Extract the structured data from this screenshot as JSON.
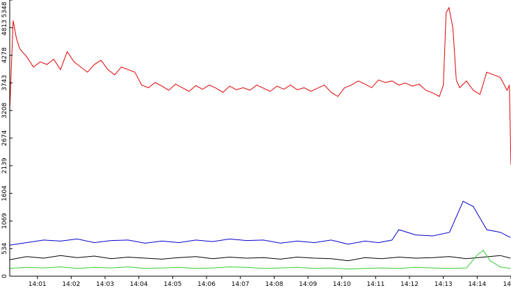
{
  "chart_data": {
    "type": "line",
    "title": "",
    "xlabel": "",
    "ylabel": "",
    "ylim": [
      0,
      5348
    ],
    "xlim": [
      "14:00:11",
      "14:15:00"
    ],
    "grid": false,
    "legend": "none",
    "y_ticks": [
      "0",
      "534",
      "1069",
      "1604",
      "2139",
      "2674",
      "3208",
      "3743",
      "4278",
      "4813",
      "5348"
    ],
    "x_ticks": [
      "14:01",
      "14:02",
      "14:03",
      "14:04",
      "14:05",
      "14:06",
      "14:07",
      "14:08",
      "14:09",
      "14:10",
      "14:11",
      "14:12",
      "14:13",
      "14:14",
      "14"
    ],
    "x_tick_times": [
      "14:01:00",
      "14:02:00",
      "14:03:00",
      "14:04:00",
      "14:05:00",
      "14:06:00",
      "14:07:00",
      "14:08:00",
      "14:09:00",
      "14:10:00",
      "14:11:00",
      "14:12:00",
      "14:13:00",
      "14:14:00",
      "14:15:00"
    ],
    "series": [
      {
        "color": "#e00000",
        "x": [
          "14:00:11",
          "14:00:17",
          "14:00:23",
          "14:00:29",
          "14:00:41",
          "14:00:53",
          "14:01:05",
          "14:01:17",
          "14:01:29",
          "14:01:41",
          "14:01:53",
          "14:02:05",
          "14:02:17",
          "14:02:29",
          "14:02:41",
          "14:02:53",
          "14:03:05",
          "14:03:17",
          "14:03:29",
          "14:03:41",
          "14:03:53",
          "14:04:05",
          "14:04:17",
          "14:04:29",
          "14:04:41",
          "14:04:53",
          "14:05:05",
          "14:05:17",
          "14:05:29",
          "14:05:41",
          "14:05:53",
          "14:06:05",
          "14:06:17",
          "14:06:29",
          "14:06:41",
          "14:06:53",
          "14:07:05",
          "14:07:17",
          "14:07:29",
          "14:07:41",
          "14:07:53",
          "14:08:05",
          "14:08:17",
          "14:08:29",
          "14:08:41",
          "14:08:53",
          "14:09:05",
          "14:09:17",
          "14:09:29",
          "14:09:41",
          "14:09:53",
          "14:10:05",
          "14:10:17",
          "14:10:29",
          "14:10:41",
          "14:10:53",
          "14:11:05",
          "14:11:17",
          "14:11:29",
          "14:11:41",
          "14:11:53",
          "14:12:05",
          "14:12:17",
          "14:12:29",
          "14:12:41",
          "14:12:53",
          "14:13:00",
          "14:13:05",
          "14:13:10",
          "14:13:17",
          "14:13:23",
          "14:13:29",
          "14:13:41",
          "14:13:53",
          "14:14:05",
          "14:14:17",
          "14:14:29",
          "14:14:41",
          "14:14:53",
          "14:14:57",
          "14:15:00"
        ],
        "values": [
          3208,
          4950,
          4600,
          4400,
          4250,
          4050,
          4150,
          4100,
          4200,
          4000,
          4350,
          4150,
          4050,
          3950,
          4100,
          4180,
          4000,
          3900,
          4050,
          4000,
          3950,
          3700,
          3650,
          3750,
          3680,
          3600,
          3720,
          3650,
          3580,
          3690,
          3620,
          3700,
          3640,
          3560,
          3680,
          3610,
          3650,
          3600,
          3700,
          3640,
          3580,
          3680,
          3620,
          3700,
          3610,
          3650,
          3580,
          3640,
          3700,
          3560,
          3480,
          3650,
          3700,
          3780,
          3720,
          3650,
          3800,
          3750,
          3780,
          3700,
          3740,
          3680,
          3720,
          3600,
          3550,
          3480,
          3700,
          5100,
          5200,
          4800,
          3800,
          3650,
          3780,
          3600,
          3520,
          3950,
          3900,
          3850,
          3600,
          3700,
          2150
        ]
      },
      {
        "color": "#0000cc",
        "x": [
          "14:00:11",
          "14:00:41",
          "14:01:11",
          "14:01:41",
          "14:02:11",
          "14:02:41",
          "14:03:11",
          "14:03:41",
          "14:04:11",
          "14:04:41",
          "14:05:11",
          "14:05:41",
          "14:06:11",
          "14:06:41",
          "14:07:11",
          "14:07:41",
          "14:08:11",
          "14:08:41",
          "14:09:11",
          "14:09:41",
          "14:10:11",
          "14:10:41",
          "14:11:05",
          "14:11:29",
          "14:11:41",
          "14:12:11",
          "14:12:41",
          "14:13:11",
          "14:13:35",
          "14:13:53",
          "14:14:17",
          "14:14:41",
          "14:14:59"
        ],
        "values": [
          600,
          650,
          700,
          680,
          720,
          650,
          690,
          700,
          640,
          680,
          650,
          700,
          670,
          720,
          690,
          700,
          640,
          680,
          650,
          700,
          620,
          680,
          650,
          700,
          900,
          800,
          780,
          850,
          1450,
          1350,
          900,
          850,
          750
        ]
      },
      {
        "color": "#000000",
        "x": [
          "14:00:11",
          "14:00:41",
          "14:01:11",
          "14:01:41",
          "14:02:11",
          "14:02:41",
          "14:03:11",
          "14:03:41",
          "14:04:11",
          "14:04:41",
          "14:05:11",
          "14:05:41",
          "14:06:11",
          "14:06:41",
          "14:07:11",
          "14:07:41",
          "14:08:11",
          "14:08:41",
          "14:09:11",
          "14:09:41",
          "14:10:11",
          "14:10:41",
          "14:11:11",
          "14:11:41",
          "14:12:11",
          "14:12:41",
          "14:13:11",
          "14:13:41",
          "14:14:11",
          "14:14:41",
          "14:14:59"
        ],
        "values": [
          320,
          380,
          350,
          400,
          360,
          390,
          340,
          370,
          350,
          330,
          360,
          380,
          340,
          370,
          350,
          360,
          330,
          370,
          350,
          340,
          300,
          360,
          340,
          370,
          350,
          360,
          380,
          340,
          370,
          400,
          350
        ]
      },
      {
        "color": "#33cc33",
        "x": [
          "14:00:11",
          "14:00:41",
          "14:01:11",
          "14:01:41",
          "14:02:11",
          "14:02:41",
          "14:03:11",
          "14:03:41",
          "14:04:11",
          "14:04:41",
          "14:05:11",
          "14:05:41",
          "14:06:11",
          "14:06:41",
          "14:07:11",
          "14:07:41",
          "14:08:11",
          "14:08:41",
          "14:09:11",
          "14:09:41",
          "14:10:11",
          "14:10:41",
          "14:11:11",
          "14:11:41",
          "14:12:11",
          "14:12:41",
          "14:13:11",
          "14:13:41",
          "14:14:01",
          "14:14:11",
          "14:14:23",
          "14:14:41",
          "14:14:59"
        ],
        "values": [
          150,
          170,
          160,
          180,
          150,
          170,
          160,
          180,
          150,
          160,
          170,
          150,
          160,
          180,
          170,
          150,
          160,
          170,
          150,
          160,
          140,
          150,
          160,
          150,
          170,
          160,
          150,
          160,
          420,
          500,
          300,
          180,
          150
        ]
      }
    ]
  }
}
